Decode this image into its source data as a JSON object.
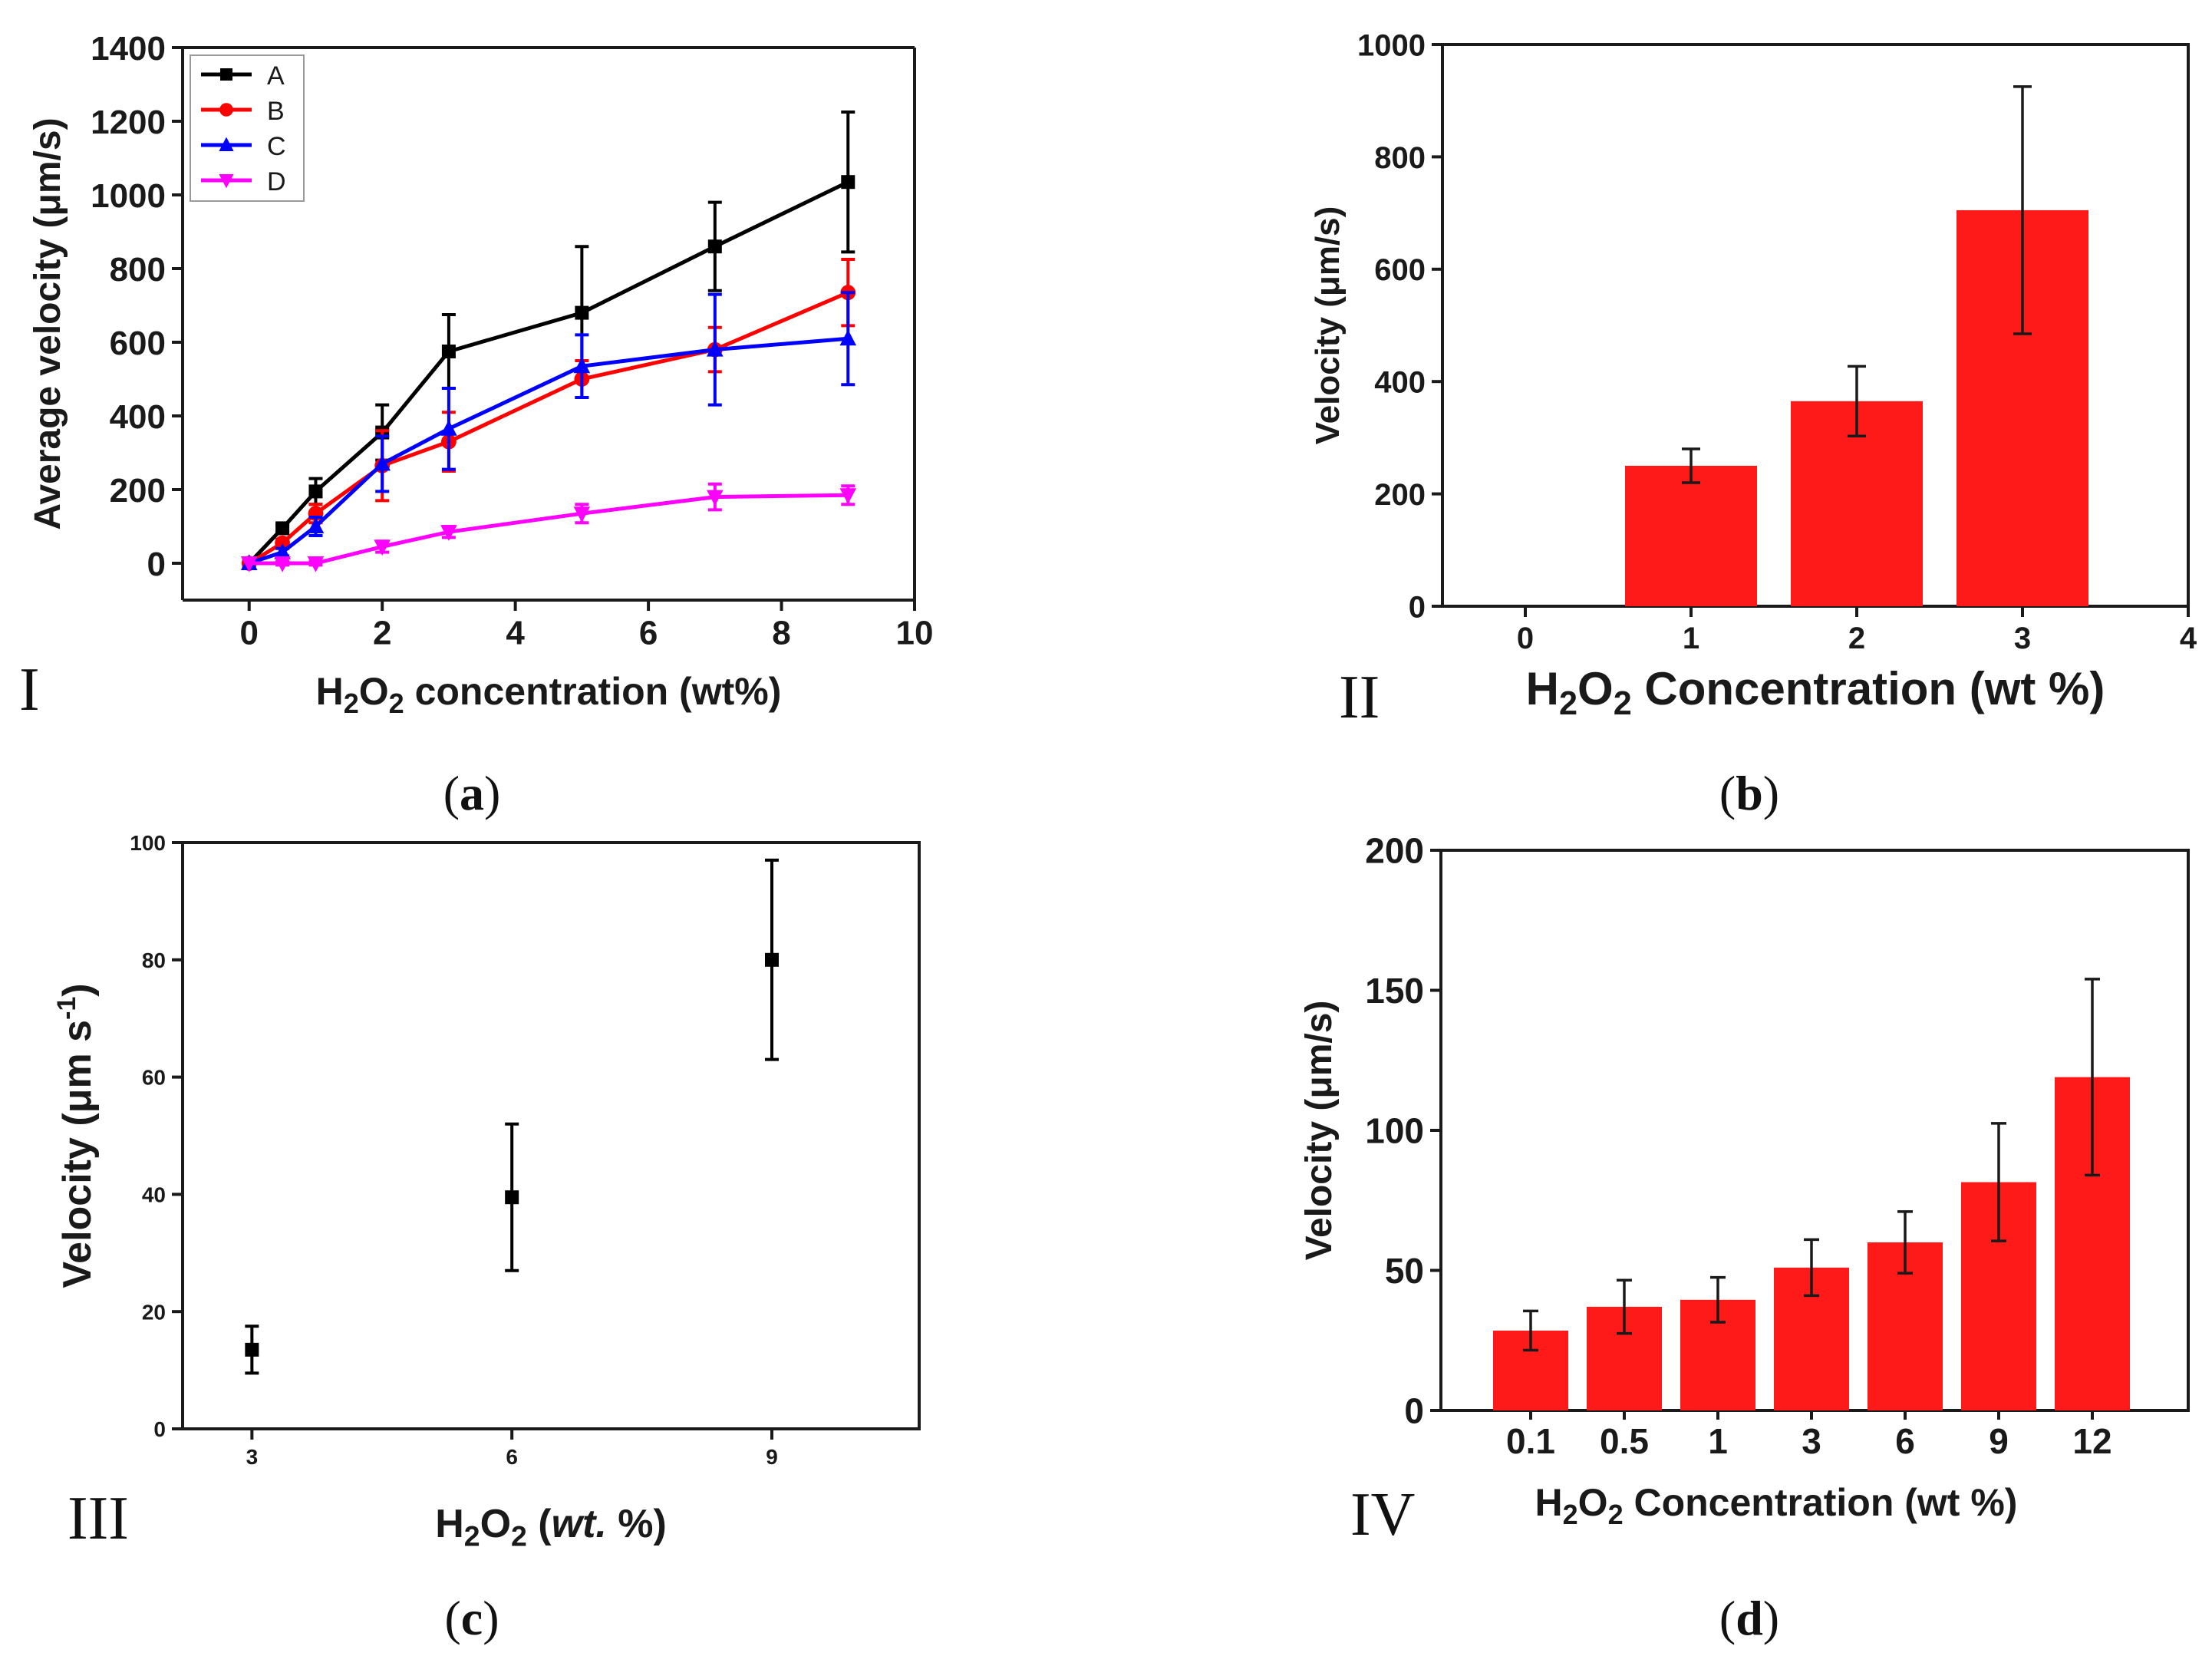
{
  "panels": {
    "a": {
      "roman": "I",
      "caption_letter": "a"
    },
    "b": {
      "roman": "II",
      "caption_letter": "b"
    },
    "c": {
      "roman": "III",
      "caption_letter": "c"
    },
    "d": {
      "roman": "IV",
      "caption_letter": "d"
    }
  },
  "chart_data": [
    {
      "id": "a",
      "type": "line",
      "ylabel": "Average velocity (μm/s)",
      "xlabel_parts": [
        "H",
        "2",
        "O",
        "2",
        " concentration (wt%)"
      ],
      "xlim": [
        -1,
        10
      ],
      "ylim": [
        -100,
        1400
      ],
      "xticks": [
        0,
        2,
        4,
        6,
        8,
        10
      ],
      "yticks": [
        0,
        200,
        400,
        600,
        800,
        1000,
        1200,
        1400
      ],
      "x": [
        0,
        0.5,
        1,
        2,
        3,
        5,
        7,
        9
      ],
      "legend_position": "top-left",
      "series": [
        {
          "name": "A",
          "color": "#000000",
          "marker": "square",
          "values": [
            0,
            95,
            195,
            355,
            575,
            680,
            860,
            1035
          ],
          "errors": [
            0,
            10,
            35,
            75,
            100,
            180,
            120,
            190
          ]
        },
        {
          "name": "B",
          "color": "#ff0000",
          "marker": "circle",
          "values": [
            0,
            55,
            135,
            265,
            330,
            500,
            580,
            735
          ],
          "errors": [
            0,
            10,
            25,
            95,
            80,
            50,
            60,
            90
          ]
        },
        {
          "name": "C",
          "color": "#0000ff",
          "marker": "triangle-up",
          "values": [
            0,
            30,
            100,
            270,
            365,
            535,
            580,
            610
          ],
          "errors": [
            0,
            10,
            25,
            75,
            110,
            85,
            150,
            125
          ]
        },
        {
          "name": "D",
          "color": "#ff00ff",
          "marker": "triangle-down",
          "values": [
            0,
            0,
            0,
            45,
            85,
            135,
            180,
            185
          ],
          "errors": [
            0,
            5,
            5,
            15,
            15,
            25,
            35,
            25
          ]
        }
      ]
    },
    {
      "id": "b",
      "type": "bar",
      "ylabel": "Velocity (μm/s)",
      "xlabel_parts": [
        "H",
        "2",
        "O",
        "2",
        " Concentration (wt %)"
      ],
      "xlim": [
        -0.5,
        4
      ],
      "ylim": [
        0,
        1000
      ],
      "xticks": [
        0,
        1,
        2,
        3,
        4
      ],
      "yticks": [
        0,
        200,
        400,
        600,
        800,
        1000
      ],
      "x": [
        1,
        2,
        3
      ],
      "values": [
        250,
        365,
        705
      ],
      "errors": [
        30,
        62,
        220
      ],
      "color": "#ff1a1a"
    },
    {
      "id": "c",
      "type": "scatter",
      "ylabel_parts": [
        "Velocity (μm s",
        "-1",
        ")"
      ],
      "xlabel_parts": [
        "H",
        "2",
        "O",
        "2",
        " (",
        "wt.",
        " %)"
      ],
      "xlim": [
        2.2,
        10.7
      ],
      "ylim": [
        0,
        100
      ],
      "xticks": [
        3,
        6,
        9
      ],
      "yticks": [
        0,
        20,
        40,
        60,
        80,
        100
      ],
      "x": [
        3,
        6,
        9
      ],
      "values": [
        13.5,
        39.5,
        80
      ],
      "errors": [
        4,
        12.5,
        17
      ],
      "color": "#000000"
    },
    {
      "id": "d",
      "type": "bar",
      "ylabel": "Velocity (μm/s)",
      "xlabel_parts": [
        "H",
        "2",
        "O",
        "2",
        " Concentration (wt %)"
      ],
      "categories": [
        "0.1",
        "0.5",
        "1",
        "3",
        "6",
        "9",
        "12"
      ],
      "ylim": [
        0,
        200
      ],
      "yticks": [
        0,
        50,
        100,
        150,
        200
      ],
      "values": [
        28.5,
        37,
        39.5,
        51,
        60,
        81.5,
        119
      ],
      "errors": [
        7,
        9.5,
        8,
        10,
        11,
        21,
        35
      ],
      "color": "#ff1a1a"
    }
  ]
}
